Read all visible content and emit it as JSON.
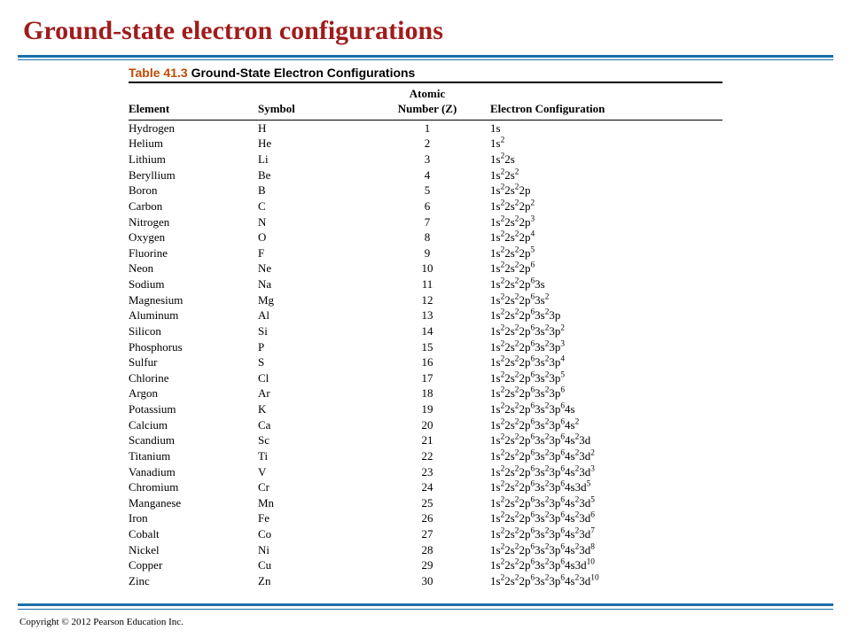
{
  "title": "Ground-state electron configurations",
  "table": {
    "caption_label": "Table 41.3",
    "caption_title": "Ground-State Electron Configurations",
    "headers": {
      "element": "Element",
      "symbol": "Symbol",
      "atomic_top": "Atomic",
      "atomic_bottom": "Number (Z)",
      "config": "Electron Configuration"
    },
    "rows": [
      {
        "el": "Hydrogen",
        "sym": "H",
        "z": "1",
        "cfg": "1s"
      },
      {
        "el": "Helium",
        "sym": "He",
        "z": "2",
        "cfg": "1s<sup>2</sup>"
      },
      {
        "el": "Lithium",
        "sym": "Li",
        "z": "3",
        "cfg": "1s<sup>2</sup>2s"
      },
      {
        "el": "Beryllium",
        "sym": "Be",
        "z": "4",
        "cfg": "1s<sup>2</sup>2s<sup>2</sup>"
      },
      {
        "el": "Boron",
        "sym": "B",
        "z": "5",
        "cfg": "1s<sup>2</sup>2s<sup>2</sup>2p"
      },
      {
        "el": "Carbon",
        "sym": "C",
        "z": "6",
        "cfg": "1s<sup>2</sup>2s<sup>2</sup>2p<sup>2</sup>"
      },
      {
        "el": "Nitrogen",
        "sym": "N",
        "z": "7",
        "cfg": "1s<sup>2</sup>2s<sup>2</sup>2p<sup>3</sup>"
      },
      {
        "el": "Oxygen",
        "sym": "O",
        "z": "8",
        "cfg": "1s<sup>2</sup>2s<sup>2</sup>2p<sup>4</sup>"
      },
      {
        "el": "Fluorine",
        "sym": "F",
        "z": "9",
        "cfg": "1s<sup>2</sup>2s<sup>2</sup>2p<sup>5</sup>"
      },
      {
        "el": "Neon",
        "sym": "Ne",
        "z": "10",
        "cfg": "1s<sup>2</sup>2s<sup>2</sup>2p<sup>6</sup>"
      },
      {
        "el": "Sodium",
        "sym": "Na",
        "z": "11",
        "cfg": "1s<sup>2</sup>2s<sup>2</sup>2p<sup>6</sup>3s"
      },
      {
        "el": "Magnesium",
        "sym": "Mg",
        "z": "12",
        "cfg": "1s<sup>2</sup>2s<sup>2</sup>2p<sup>6</sup>3s<sup>2</sup>"
      },
      {
        "el": "Aluminum",
        "sym": "Al",
        "z": "13",
        "cfg": "1s<sup>2</sup>2s<sup>2</sup>2p<sup>6</sup>3s<sup>2</sup>3p"
      },
      {
        "el": "Silicon",
        "sym": "Si",
        "z": "14",
        "cfg": "1s<sup>2</sup>2s<sup>2</sup>2p<sup>6</sup>3s<sup>2</sup>3p<sup>2</sup>"
      },
      {
        "el": "Phosphorus",
        "sym": "P",
        "z": "15",
        "cfg": "1s<sup>2</sup>2s<sup>2</sup>2p<sup>6</sup>3s<sup>2</sup>3p<sup>3</sup>"
      },
      {
        "el": "Sulfur",
        "sym": "S",
        "z": "16",
        "cfg": "1s<sup>2</sup>2s<sup>2</sup>2p<sup>6</sup>3s<sup>2</sup>3p<sup>4</sup>"
      },
      {
        "el": "Chlorine",
        "sym": "Cl",
        "z": "17",
        "cfg": "1s<sup>2</sup>2s<sup>2</sup>2p<sup>6</sup>3s<sup>2</sup>3p<sup>5</sup>"
      },
      {
        "el": "Argon",
        "sym": "Ar",
        "z": "18",
        "cfg": "1s<sup>2</sup>2s<sup>2</sup>2p<sup>6</sup>3s<sup>2</sup>3p<sup>6</sup>"
      },
      {
        "el": "Potassium",
        "sym": "K",
        "z": "19",
        "cfg": "1s<sup>2</sup>2s<sup>2</sup>2p<sup>6</sup>3s<sup>2</sup>3p<sup>6</sup>4s"
      },
      {
        "el": "Calcium",
        "sym": "Ca",
        "z": "20",
        "cfg": "1s<sup>2</sup>2s<sup>2</sup>2p<sup>6</sup>3s<sup>2</sup>3p<sup>6</sup>4s<sup>2</sup>"
      },
      {
        "el": "Scandium",
        "sym": "Sc",
        "z": "21",
        "cfg": "1s<sup>2</sup>2s<sup>2</sup>2p<sup>6</sup>3s<sup>2</sup>3p<sup>6</sup>4s<sup>2</sup>3d"
      },
      {
        "el": "Titanium",
        "sym": "Ti",
        "z": "22",
        "cfg": "1s<sup>2</sup>2s<sup>2</sup>2p<sup>6</sup>3s<sup>2</sup>3p<sup>6</sup>4s<sup>2</sup>3d<sup>2</sup>"
      },
      {
        "el": "Vanadium",
        "sym": "V",
        "z": "23",
        "cfg": "1s<sup>2</sup>2s<sup>2</sup>2p<sup>6</sup>3s<sup>2</sup>3p<sup>6</sup>4s<sup>2</sup>3d<sup>3</sup>"
      },
      {
        "el": "Chromium",
        "sym": "Cr",
        "z": "24",
        "cfg": "1s<sup>2</sup>2s<sup>2</sup>2p<sup>6</sup>3s<sup>2</sup>3p<sup>6</sup>4s3d<sup>5</sup>"
      },
      {
        "el": "Manganese",
        "sym": "Mn",
        "z": "25",
        "cfg": "1s<sup>2</sup>2s<sup>2</sup>2p<sup>6</sup>3s<sup>2</sup>3p<sup>6</sup>4s<sup>2</sup>3d<sup>5</sup>"
      },
      {
        "el": "Iron",
        "sym": "Fe",
        "z": "26",
        "cfg": "1s<sup>2</sup>2s<sup>2</sup>2p<sup>6</sup>3s<sup>2</sup>3p<sup>6</sup>4s<sup>2</sup>3d<sup>6</sup>"
      },
      {
        "el": "Cobalt",
        "sym": "Co",
        "z": "27",
        "cfg": "1s<sup>2</sup>2s<sup>2</sup>2p<sup>6</sup>3s<sup>2</sup>3p<sup>6</sup>4s<sup>2</sup>3d<sup>7</sup>"
      },
      {
        "el": "Nickel",
        "sym": "Ni",
        "z": "28",
        "cfg": "1s<sup>2</sup>2s<sup>2</sup>2p<sup>6</sup>3s<sup>2</sup>3p<sup>6</sup>4s<sup>2</sup>3d<sup>8</sup>"
      },
      {
        "el": "Copper",
        "sym": "Cu",
        "z": "29",
        "cfg": "1s<sup>2</sup>2s<sup>2</sup>2p<sup>6</sup>3s<sup>2</sup>3p<sup>6</sup>4s3d<sup>10</sup>"
      },
      {
        "el": "Zinc",
        "sym": "Zn",
        "z": "30",
        "cfg": "1s<sup>2</sup>2s<sup>2</sup>2p<sup>6</sup>3s<sup>2</sup>3p<sup>6</sup>4s<sup>2</sup>3d<sup>10</sup>"
      }
    ]
  },
  "copyright": "Copyright © 2012 Pearson Education Inc.",
  "colors": {
    "title": "#a01c1c",
    "rule": "#1b6fa8",
    "caption_label": "#c24a00",
    "background": "#ffffff",
    "text": "#000000"
  }
}
